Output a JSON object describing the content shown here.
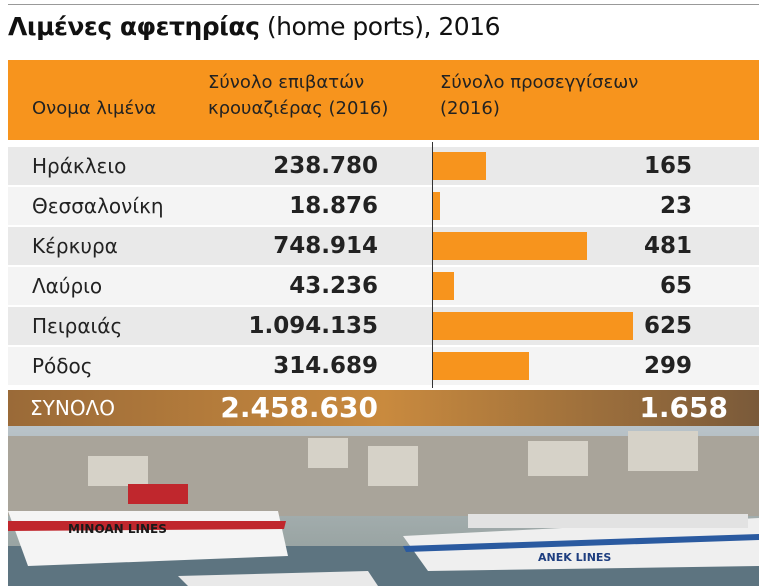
{
  "title": {
    "bold": "Λιμένες αφετηρίας",
    "rest": "(home ports), 2016"
  },
  "table": {
    "headers": [
      "Ονομα λιμένα",
      "Σύνολο επιβατών κρουαζιέρας (2016)",
      "Σύνολο προσεγγίσεων (2016)"
    ],
    "rows": [
      {
        "port": "Ηράκλειο",
        "passengers": "238.780",
        "calls": 165
      },
      {
        "port": "Θεσσαλονίκη",
        "passengers": "18.876",
        "calls": 23
      },
      {
        "port": "Κέρκυρα",
        "passengers": "748.914",
        "calls": 481
      },
      {
        "port": "Λαύριο",
        "passengers": "43.236",
        "calls": 65
      },
      {
        "port": "Πειραιάς",
        "passengers": "1.094.135",
        "calls": 625
      },
      {
        "port": "Ρόδος",
        "passengers": "314.689",
        "calls": 299
      }
    ],
    "total": {
      "label": "ΣΥΝΟΛΟ",
      "passengers": "2.458.630",
      "calls": "1.658"
    },
    "bar_color": "#f7941d"
  },
  "photo": {
    "labels": [
      "MINOAN LINES",
      "ANEK LINES"
    ]
  }
}
